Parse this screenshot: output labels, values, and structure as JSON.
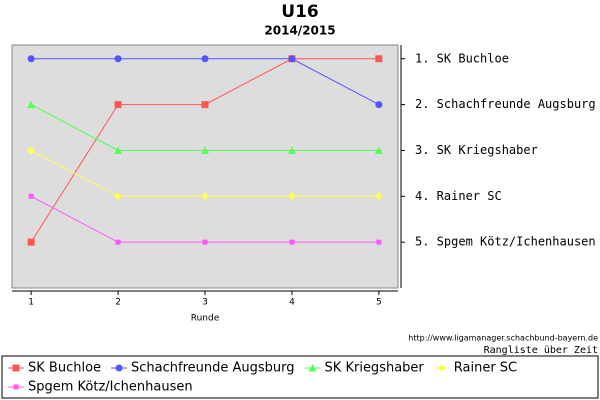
{
  "chart_data": {
    "type": "line",
    "title": "U16",
    "subtitle": "2014/2015",
    "x_label": "Runde",
    "x": [
      1,
      2,
      3,
      4,
      5
    ],
    "xlim": [
      0.78,
      5.22
    ],
    "xticks": [
      1,
      2,
      3,
      4,
      5
    ],
    "ylim": [
      0.7,
      6
    ],
    "y_inverted": true,
    "yticks": [
      {
        "value": 1,
        "label": "1. SK Buchloe"
      },
      {
        "value": 2,
        "label": "2. Schachfreunde Augsburg"
      },
      {
        "value": 3,
        "label": "3. SK Kriegshaber"
      },
      {
        "value": 4,
        "label": "4. Rainer SC"
      },
      {
        "value": 5,
        "label": "5. Spgem Kötz/Ichenhausen"
      }
    ],
    "series": [
      {
        "name": "SK Buchloe",
        "color": "#ff5555",
        "marker": "square",
        "values": [
          5,
          2,
          2,
          1,
          1
        ]
      },
      {
        "name": "Schachfreunde Augsburg",
        "color": "#5555ff",
        "marker": "circle",
        "values": [
          1,
          1,
          1,
          1,
          2
        ]
      },
      {
        "name": "SK Kriegshaber",
        "color": "#55ff55",
        "marker": "triangle",
        "values": [
          2,
          3,
          3,
          3,
          3
        ]
      },
      {
        "name": "Rainer SC",
        "color": "#ffff55",
        "marker": "diamond",
        "values": [
          3,
          4,
          4,
          4,
          4
        ]
      },
      {
        "name": "Spgem Kötz/Ichenhausen",
        "color": "#ff55ff",
        "marker": "small-square",
        "values": [
          4,
          5,
          5,
          5,
          5
        ]
      }
    ],
    "source": "http://www.ligamanager.schachbund-bayern.de",
    "note": "Rangliste über Zeit"
  }
}
